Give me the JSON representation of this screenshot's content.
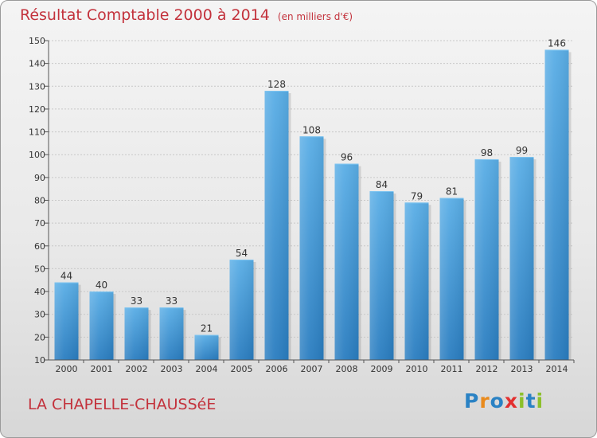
{
  "title": "Résultat Comptable 2000 à 2014",
  "unit": "(en milliers d'€)",
  "commune": "LA CHAPELLE-CHAUSSéE",
  "logo": {
    "text": "Proxiti",
    "letter_colors": [
      "#2a82c4",
      "#e98a1c",
      "#2a82c4",
      "#e3302f",
      "#8cc02a",
      "#2a82c4",
      "#8cc02a"
    ]
  },
  "colors": {
    "title": "#c3323c",
    "bar_top": "#5aaee6",
    "bar_bottom": "#2a7dc0",
    "grid": "#c8c8c8",
    "axis": "#555555"
  },
  "chart_data": {
    "type": "bar",
    "categories": [
      "2000",
      "2001",
      "2002",
      "2003",
      "2004",
      "2005",
      "2006",
      "2007",
      "2008",
      "2009",
      "2010",
      "2011",
      "2012",
      "2013",
      "2014"
    ],
    "values": [
      44,
      40,
      33,
      33,
      21,
      54,
      128,
      108,
      96,
      84,
      79,
      81,
      98,
      99,
      146
    ],
    "data_labels": [
      "44",
      "40",
      "33",
      "33",
      "21",
      "54",
      "128",
      "108",
      "96",
      "84",
      "79",
      "81",
      "98",
      "99",
      "146"
    ],
    "title": "Résultat Comptable 2000 à 2014",
    "ylim": [
      10,
      150
    ],
    "yticks": [
      10,
      20,
      30,
      40,
      50,
      60,
      70,
      80,
      90,
      100,
      110,
      120,
      130,
      140,
      150
    ],
    "grid": true
  }
}
